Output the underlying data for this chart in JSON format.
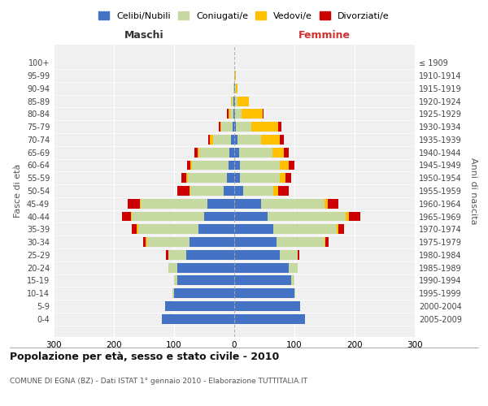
{
  "age_groups": [
    "0-4",
    "5-9",
    "10-14",
    "15-19",
    "20-24",
    "25-29",
    "30-34",
    "35-39",
    "40-44",
    "45-49",
    "50-54",
    "55-59",
    "60-64",
    "65-69",
    "70-74",
    "75-79",
    "80-84",
    "85-89",
    "90-94",
    "95-99",
    "100+"
  ],
  "birth_years": [
    "2005-2009",
    "2000-2004",
    "1995-1999",
    "1990-1994",
    "1985-1989",
    "1980-1984",
    "1975-1979",
    "1970-1974",
    "1965-1969",
    "1960-1964",
    "1955-1959",
    "1950-1954",
    "1945-1949",
    "1940-1944",
    "1935-1939",
    "1930-1934",
    "1925-1929",
    "1920-1924",
    "1915-1919",
    "1910-1914",
    "≤ 1909"
  ],
  "maschi": {
    "celibi": [
      120,
      115,
      100,
      95,
      95,
      80,
      75,
      60,
      50,
      45,
      18,
      12,
      10,
      8,
      5,
      3,
      2,
      1,
      0,
      0,
      0
    ],
    "coniugati": [
      0,
      0,
      3,
      5,
      15,
      30,
      70,
      100,
      120,
      110,
      55,
      65,
      60,
      50,
      30,
      18,
      5,
      3,
      1,
      0,
      0
    ],
    "vedovi": [
      0,
      0,
      0,
      0,
      0,
      0,
      2,
      2,
      2,
      2,
      2,
      3,
      3,
      3,
      5,
      2,
      3,
      2,
      0,
      0,
      0
    ],
    "divorziati": [
      0,
      0,
      0,
      0,
      0,
      3,
      5,
      8,
      15,
      20,
      20,
      8,
      5,
      5,
      3,
      3,
      2,
      0,
      0,
      0,
      0
    ]
  },
  "femmine": {
    "nubili": [
      118,
      110,
      100,
      95,
      90,
      75,
      70,
      65,
      55,
      45,
      15,
      10,
      10,
      8,
      5,
      3,
      2,
      1,
      1,
      0,
      0
    ],
    "coniugate": [
      0,
      0,
      2,
      5,
      15,
      30,
      80,
      105,
      130,
      105,
      50,
      65,
      65,
      55,
      40,
      25,
      10,
      5,
      2,
      1,
      0
    ],
    "vedove": [
      0,
      0,
      0,
      0,
      0,
      0,
      2,
      3,
      5,
      5,
      8,
      10,
      15,
      20,
      30,
      45,
      35,
      18,
      3,
      2,
      0
    ],
    "divorziate": [
      0,
      0,
      0,
      0,
      0,
      3,
      5,
      10,
      20,
      18,
      18,
      10,
      10,
      8,
      8,
      5,
      2,
      0,
      0,
      0,
      0
    ]
  },
  "colors": {
    "celibi": "#4472c4",
    "coniugati": "#c5d9a0",
    "vedovi": "#ffc000",
    "divorziati": "#cc0000"
  },
  "xlim": 300,
  "title": "Popolazione per età, sesso e stato civile - 2010",
  "subtitle": "COMUNE DI EGNA (BZ) - Dati ISTAT 1° gennaio 2010 - Elaborazione TUTTITALIA.IT",
  "ylabel_left": "Fasce di età",
  "ylabel_right": "Anni di nascita",
  "xlabel_left": "Maschi",
  "xlabel_right": "Femmine",
  "legend_labels": [
    "Celibi/Nubili",
    "Coniugati/e",
    "Vedovi/e",
    "Divorziati/e"
  ],
  "bg_color": "#f0f0f0",
  "grid_color": "#ffffff",
  "maschi_color": "#333333",
  "femmine_color": "#cc3333"
}
